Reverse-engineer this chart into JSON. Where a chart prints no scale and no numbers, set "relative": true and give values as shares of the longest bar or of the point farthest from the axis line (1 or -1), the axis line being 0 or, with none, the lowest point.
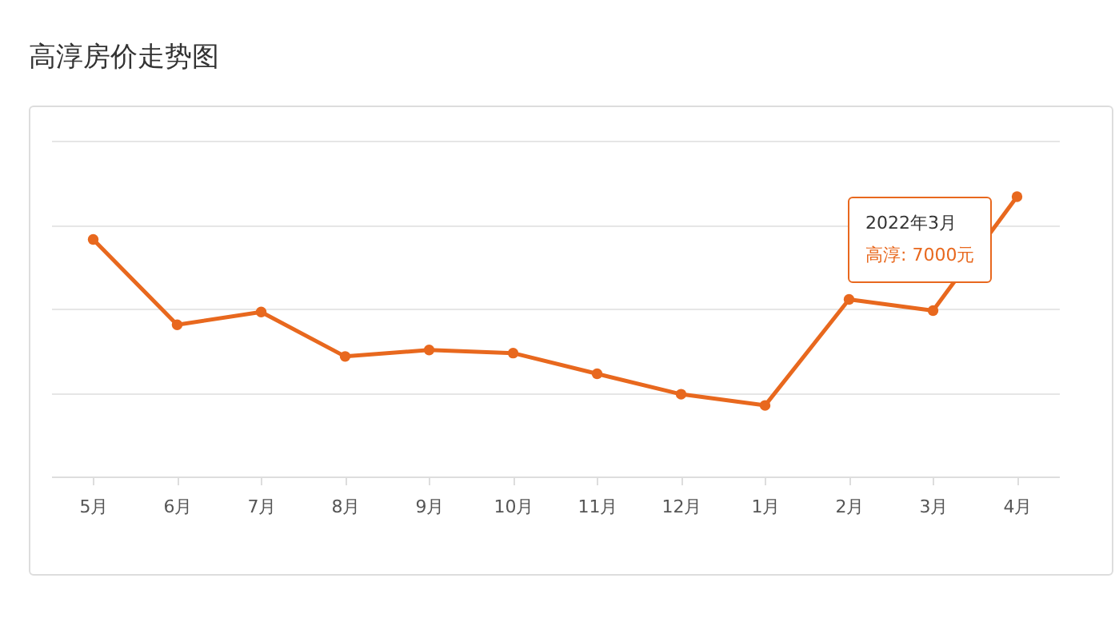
{
  "chart_data": {
    "type": "line",
    "title": "高淳房价走势图",
    "relative": true,
    "categories": [
      "5月",
      "6月",
      "7月",
      "8月",
      "9月",
      "10月",
      "11月",
      "12月",
      "1月",
      "2月",
      "3月",
      "4月"
    ],
    "series": [
      {
        "color": "#e8681e",
        "values": [
          0.847,
          0.542,
          0.588,
          0.429,
          0.452,
          0.441,
          0.367,
          0.294,
          0.254,
          0.633,
          0.593,
          1
        ]
      }
    ],
    "annotations": [
      "2022年3月",
      "高淳: 7000元"
    ],
    "grid": "y",
    "marker": "circle",
    "line_style": "solid"
  }
}
